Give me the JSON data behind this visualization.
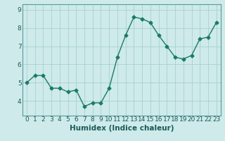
{
  "x": [
    0,
    1,
    2,
    3,
    4,
    5,
    6,
    7,
    8,
    9,
    10,
    11,
    12,
    13,
    14,
    15,
    16,
    17,
    18,
    19,
    20,
    21,
    22,
    23
  ],
  "y": [
    5.0,
    5.4,
    5.4,
    4.7,
    4.7,
    4.5,
    4.6,
    3.7,
    3.9,
    3.9,
    4.7,
    6.4,
    7.6,
    8.6,
    8.5,
    8.3,
    7.6,
    7.0,
    6.4,
    6.3,
    6.5,
    7.4,
    7.5,
    8.3
  ],
  "line_color": "#1a7a6a",
  "marker": "D",
  "marker_size": 2.5,
  "background_color": "#ceeaea",
  "grid_color": "#a8d0d0",
  "xlabel": "Humidex (Indice chaleur)",
  "xlim": [
    -0.5,
    23.5
  ],
  "ylim": [
    3.2,
    9.3
  ],
  "yticks": [
    4,
    5,
    6,
    7,
    8,
    9
  ],
  "xtick_labels": [
    "0",
    "1",
    "2",
    "3",
    "4",
    "5",
    "6",
    "7",
    "8",
    "9",
    "10",
    "11",
    "12",
    "13",
    "14",
    "15",
    "16",
    "17",
    "18",
    "19",
    "20",
    "21",
    "22",
    "23"
  ],
  "xlabel_fontsize": 7.5,
  "tick_fontsize": 6.5,
  "line_width": 1.0
}
